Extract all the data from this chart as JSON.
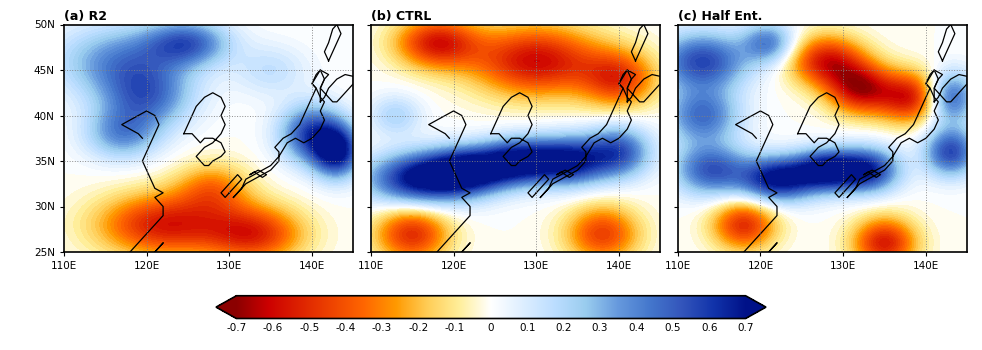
{
  "panels": [
    {
      "title": "(a) R2"
    },
    {
      "title": "(b) CTRL"
    },
    {
      "title": "(c) Half Ent."
    }
  ],
  "lon_range": [
    110,
    145
  ],
  "lat_range": [
    25,
    50
  ],
  "lon_ticks": [
    110,
    120,
    130,
    140
  ],
  "lat_ticks": [
    25,
    30,
    35,
    40,
    45,
    50
  ],
  "lon_labels": [
    "110E",
    "120E",
    "130E",
    "140E"
  ],
  "lat_labels": [
    "25N",
    "30N",
    "35N",
    "40N",
    "45N",
    "50N"
  ],
  "colorbar_ticks": [
    -0.7,
    -0.6,
    -0.5,
    -0.4,
    -0.3,
    -0.2,
    -0.1,
    0,
    0.1,
    0.2,
    0.3,
    0.4,
    0.5,
    0.6,
    0.7
  ],
  "vmin": -0.7,
  "vmax": 0.7,
  "grid_dotted_lats": [
    35,
    40,
    45
  ],
  "grid_dotted_lons": [
    120,
    130,
    140
  ],
  "colors_neg": [
    "#8b0000",
    "#cc0000",
    "#dd2200",
    "#ee4400",
    "#ff6600",
    "#ff9900",
    "#ffcc55",
    "#ffee99"
  ],
  "colors_zero": "#ffffff",
  "colors_pos": [
    "#ddeeff",
    "#bbddff",
    "#99ccee",
    "#6699dd",
    "#4477cc",
    "#3355bb",
    "#1133aa",
    "#001188"
  ]
}
